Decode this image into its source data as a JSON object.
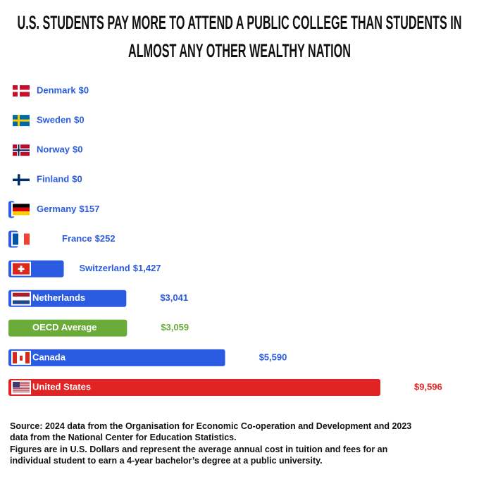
{
  "chart_data": {
    "type": "bar",
    "orientation": "horizontal",
    "title": "U.S. STUDENTS PAY MORE TO ATTEND A PUBLIC COLLEGE THAN STUDENTS IN ALMOST ANY OTHER WEALTHY NATION",
    "categories": [
      "Denmark",
      "Sweden",
      "Norway",
      "Finland",
      "Germany",
      "France",
      "Switzerland",
      "Netherlands",
      "OECD Average",
      "Canada",
      "United States"
    ],
    "values": [
      0,
      0,
      0,
      0,
      157,
      252,
      1427,
      3041,
      3059,
      5590,
      9596
    ],
    "value_labels": [
      "$0",
      "$0",
      "$0",
      "$0",
      "$157",
      "$252",
      "$1,427",
      "$3,041",
      "$3,059",
      "$5,590",
      "$9,596"
    ],
    "colors": [
      "#2b5be0",
      "#2b5be0",
      "#2b5be0",
      "#2b5be0",
      "#2b5be0",
      "#2b5be0",
      "#2b5be0",
      "#2b5be0",
      "#6aab3a",
      "#2b5be0",
      "#e02424"
    ],
    "source": "Source: 2024 data from the Organisation for Economic Co-operation and Development and 2023 data from the National Center for Education Statistics.",
    "note": "Figures are in U.S. Dollars and represent the average annual cost in tuition and fees for an individual student to earn a 4-year bachelor’s degree at a public university."
  }
}
